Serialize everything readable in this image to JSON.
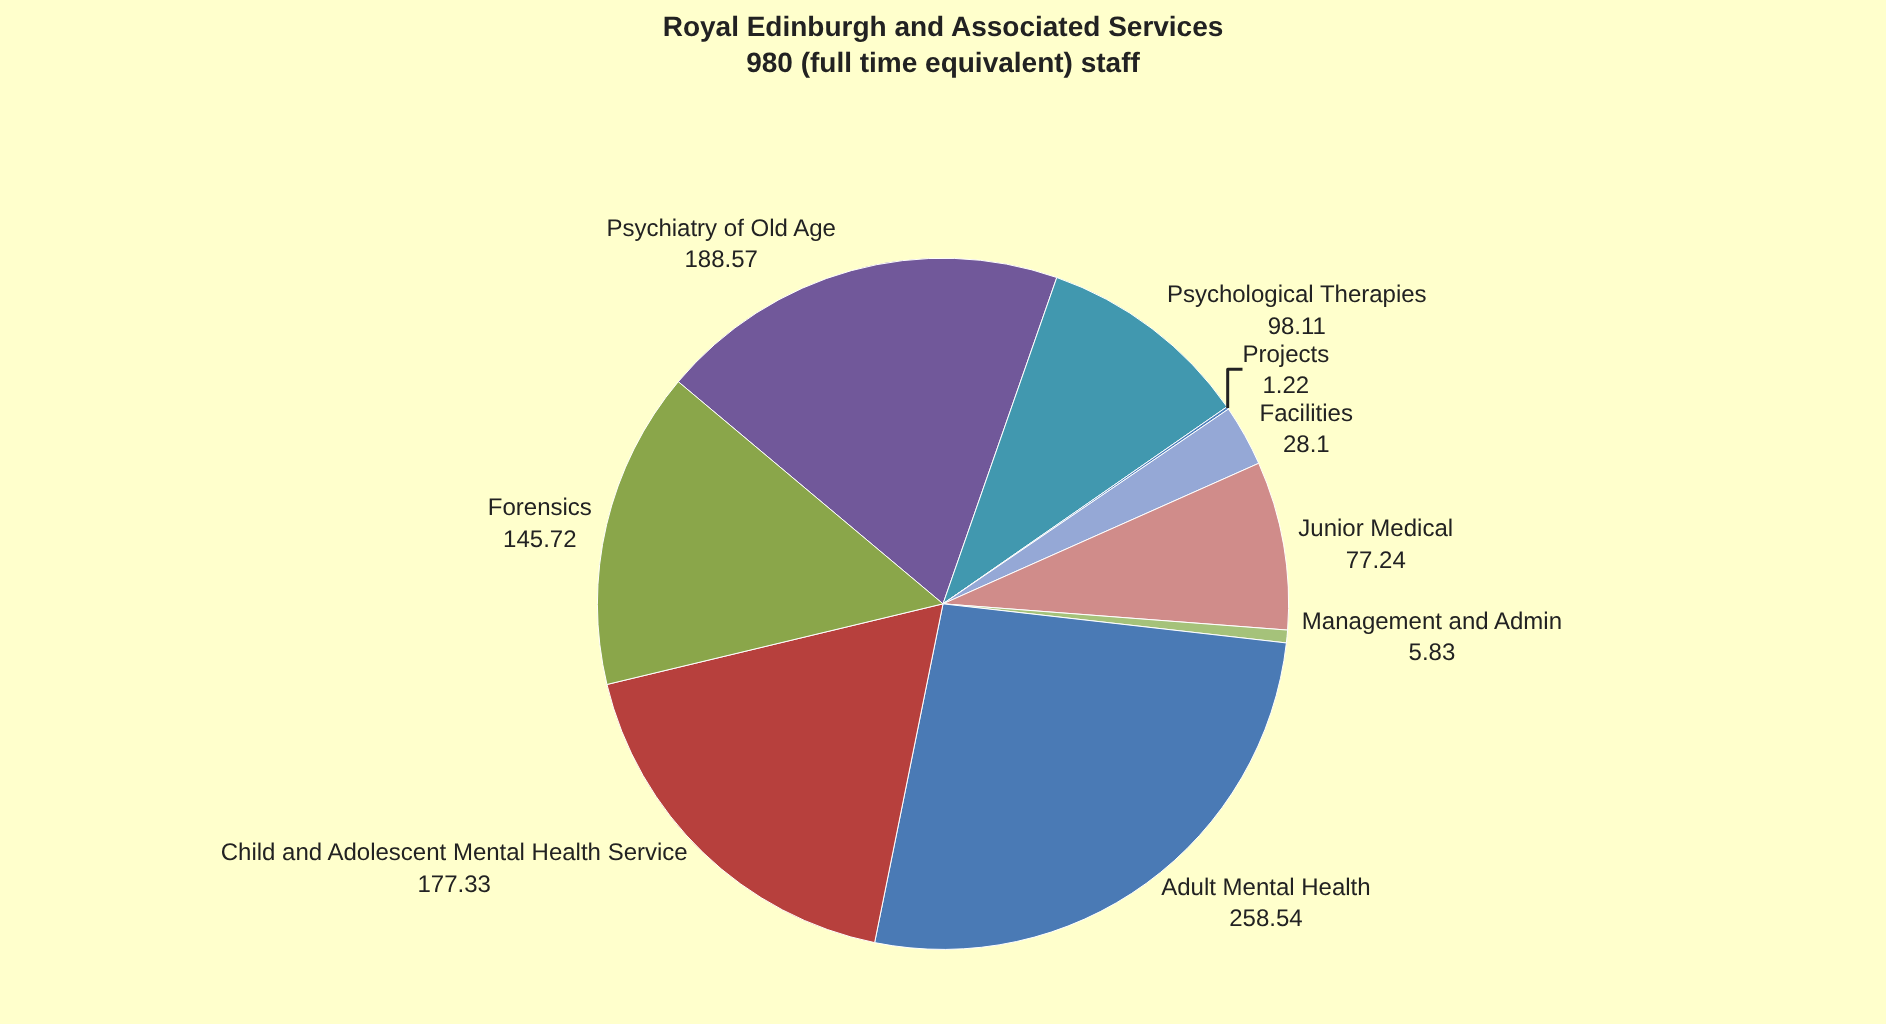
{
  "chart_data": {
    "type": "pie",
    "title": "Royal Edinburgh and Associated Services\n980 (full time equivalent) staff",
    "categories": [
      "Psychiatry of Old Age",
      "Psychological Therapies",
      "Projects",
      "Facilities",
      "Junior Medical",
      "Management and Admin",
      "Adult Mental Health",
      "Child and Adolescent Mental Health Service",
      "Forensics"
    ],
    "values": [
      188.57,
      98.11,
      1.22,
      28.1,
      77.24,
      5.83,
      258.54,
      177.33,
      145.72
    ],
    "colors": [
      "#71589a",
      "#4198af",
      "#4f81bd",
      "#95a8d6",
      "#d08c8a",
      "#a5c27a",
      "#4a7ab5",
      "#b7403d",
      "#8aa64a"
    ],
    "data_labels": true,
    "legend": false
  }
}
